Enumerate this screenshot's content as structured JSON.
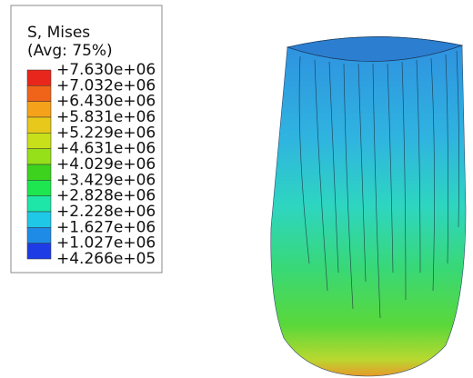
{
  "legend": {
    "title": "S, Mises",
    "subtitle": "(Avg: 75%)",
    "labels": [
      "+7.630e+06",
      "+7.032e+06",
      "+6.430e+06",
      "+5.831e+06",
      "+5.229e+06",
      "+4.631e+06",
      "+4.029e+06",
      "+3.429e+06",
      "+2.828e+06",
      "+2.228e+06",
      "+1.627e+06",
      "+1.027e+06",
      "+4.266e+05"
    ],
    "colors": [
      "#e8261c",
      "#f0641a",
      "#f5a21a",
      "#e8c81a",
      "#c8e01a",
      "#96e01a",
      "#3cd21e",
      "#1ee650",
      "#1ee6a8",
      "#1ec8e6",
      "#1e8ce6",
      "#1e3ce6"
    ]
  }
}
